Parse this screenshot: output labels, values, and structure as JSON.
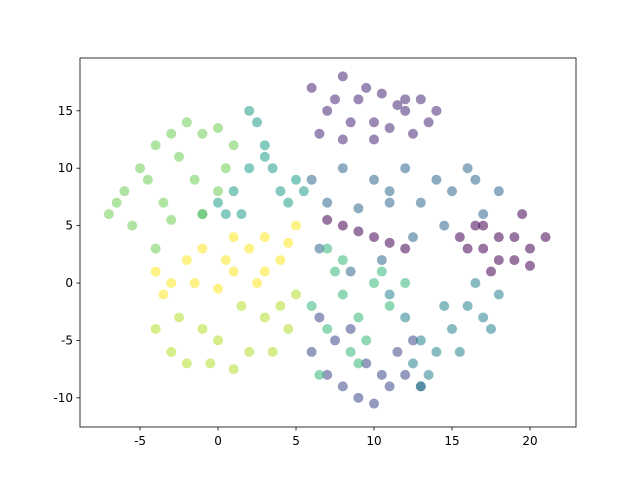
{
  "chart_data": {
    "type": "scatter",
    "xlim": [
      -8.85,
      22.95
    ],
    "ylim": [
      -12.54,
      19.6
    ],
    "xticks": [
      -5,
      0,
      5,
      10,
      15,
      20
    ],
    "yticks": [
      -10,
      -5,
      0,
      5,
      10,
      15
    ],
    "series": [
      {
        "color": "#440154",
        "x": [
          16,
          17,
          18,
          19,
          20,
          21,
          17.5,
          19.5,
          16.5,
          18,
          20,
          19,
          17,
          15.5,
          8,
          9,
          10,
          11,
          12,
          7
        ],
        "y": [
          3,
          5,
          2,
          4,
          3,
          4,
          1,
          6,
          5,
          4,
          1.5,
          2,
          3,
          4,
          5,
          4.5,
          4,
          3.5,
          3,
          5.5
        ]
      },
      {
        "color": "#482878",
        "x": [
          6,
          7,
          8,
          9,
          10,
          11,
          12,
          13,
          14,
          6.5,
          8.5,
          10.5,
          12.5,
          7.5,
          9.5,
          11.5,
          13.5,
          8,
          10,
          12
        ],
        "y": [
          17,
          15,
          18,
          16,
          14,
          13.5,
          15,
          16,
          15,
          13,
          14,
          16.5,
          13,
          16,
          17,
          15.5,
          14,
          12.5,
          12.5,
          16
        ]
      },
      {
        "color": "#3e4989",
        "x": [
          6,
          7,
          8,
          9,
          10,
          11,
          12,
          13,
          7.5,
          9.5,
          11.5,
          6.5,
          8.5,
          10.5,
          12.5
        ],
        "y": [
          -6,
          -8,
          -9,
          -10,
          -10.5,
          -9,
          -8,
          -9,
          -5,
          -7,
          -6,
          -3,
          -4,
          -8,
          -5
        ]
      },
      {
        "color": "#31688e",
        "x": [
          6,
          8,
          10,
          12,
          14,
          16,
          18,
          7,
          9,
          11,
          13,
          15,
          17,
          6.5,
          8.5,
          10.5,
          12.5,
          14.5,
          16.5,
          11
        ],
        "y": [
          9,
          10,
          9,
          10,
          9,
          10,
          8,
          7,
          6.5,
          7,
          7,
          8,
          6,
          3,
          1,
          2,
          4,
          5,
          9,
          8
        ]
      },
      {
        "color": "#26828e",
        "x": [
          11,
          12,
          13,
          14,
          15,
          16,
          17,
          18,
          12.5,
          14.5,
          16.5,
          13.5,
          15.5,
          17.5,
          13
        ],
        "y": [
          -1,
          -3,
          -5,
          -6,
          -4,
          -2,
          -3,
          -1,
          -7,
          -2,
          0,
          -8,
          -6,
          -4,
          -9
        ]
      },
      {
        "color": "#1f9e89",
        "x": [
          0,
          1,
          2,
          3,
          4,
          5,
          1.5,
          2.5,
          3.5,
          4.5,
          0.5,
          2,
          3,
          5.5,
          -1
        ],
        "y": [
          7,
          8,
          10,
          12,
          8,
          9,
          6,
          14,
          10,
          7,
          6,
          15,
          11,
          8,
          6
        ]
      },
      {
        "color": "#35b779",
        "x": [
          6,
          7,
          8,
          9,
          10,
          11,
          7.5,
          8.5,
          9.5,
          10.5,
          6.5,
          8,
          12,
          9,
          7
        ],
        "y": [
          -2,
          -4,
          -1,
          -3,
          0,
          -2,
          1,
          -6,
          -5,
          1,
          -8,
          2,
          0,
          -7,
          3
        ]
      },
      {
        "color": "#6ece58",
        "x": [
          -7,
          -6,
          -5,
          -4,
          -3,
          -2,
          -1,
          0,
          1,
          -5.5,
          -3.5,
          -1.5,
          0.5,
          -4.5,
          -2.5,
          -6.5,
          -3,
          -1,
          0,
          -4
        ],
        "y": [
          6,
          8,
          10,
          12,
          13,
          14,
          13,
          13.5,
          12,
          5,
          7,
          9,
          10,
          9,
          11,
          7,
          5.5,
          6,
          8,
          3
        ]
      },
      {
        "color": "#b5de2b",
        "x": [
          -4,
          -3,
          -2,
          -1,
          0,
          1,
          2,
          3,
          4,
          5,
          -2.5,
          -0.5,
          1.5,
          3.5,
          4.5
        ],
        "y": [
          -4,
          -6,
          -7,
          -4,
          -5,
          -7.5,
          -6,
          -3,
          -2,
          -1,
          -3,
          -7,
          -2,
          -6,
          -4
        ]
      },
      {
        "color": "#fde725",
        "x": [
          -4,
          -3,
          -2,
          -1,
          0,
          1,
          2,
          3,
          4,
          5,
          -3.5,
          -1.5,
          0.5,
          2.5,
          4.5,
          1,
          3
        ],
        "y": [
          1,
          0,
          2,
          3,
          -0.5,
          1,
          3,
          4,
          2,
          5,
          -1,
          0,
          2,
          0,
          3.5,
          4,
          1
        ]
      }
    ]
  }
}
